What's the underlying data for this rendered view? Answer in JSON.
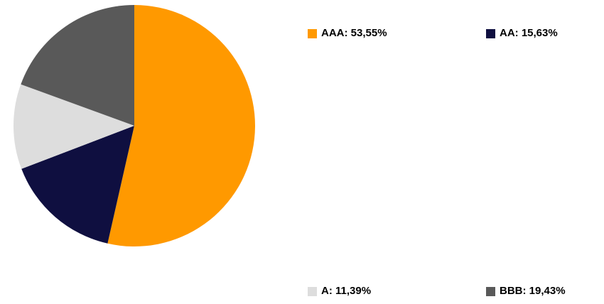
{
  "chart_data": {
    "type": "pie",
    "title": "",
    "slices": [
      {
        "label": "AAA",
        "value": 53.55,
        "display": "53,55%",
        "color": "#FF9900"
      },
      {
        "label": "AA",
        "value": 15.63,
        "display": "15,63%",
        "color": "#0F0F40"
      },
      {
        "label": "A",
        "value": 11.39,
        "display": "11,39%",
        "color": "#DDDDDD"
      },
      {
        "label": "BBB",
        "value": 19.43,
        "display": "19,43%",
        "color": "#595959"
      }
    ],
    "legend": [
      {
        "text": "AAA: 53,55%",
        "color": "#FF9900"
      },
      {
        "text": "AA: 15,63%",
        "color": "#0F0F40"
      },
      {
        "text": "A: 11,39%",
        "color": "#DDDDDD"
      },
      {
        "text": "BBB: 19,43%",
        "color": "#595959"
      }
    ],
    "start_angle": "12 o'clock",
    "direction": "clockwise",
    "legend_placement": "right"
  }
}
